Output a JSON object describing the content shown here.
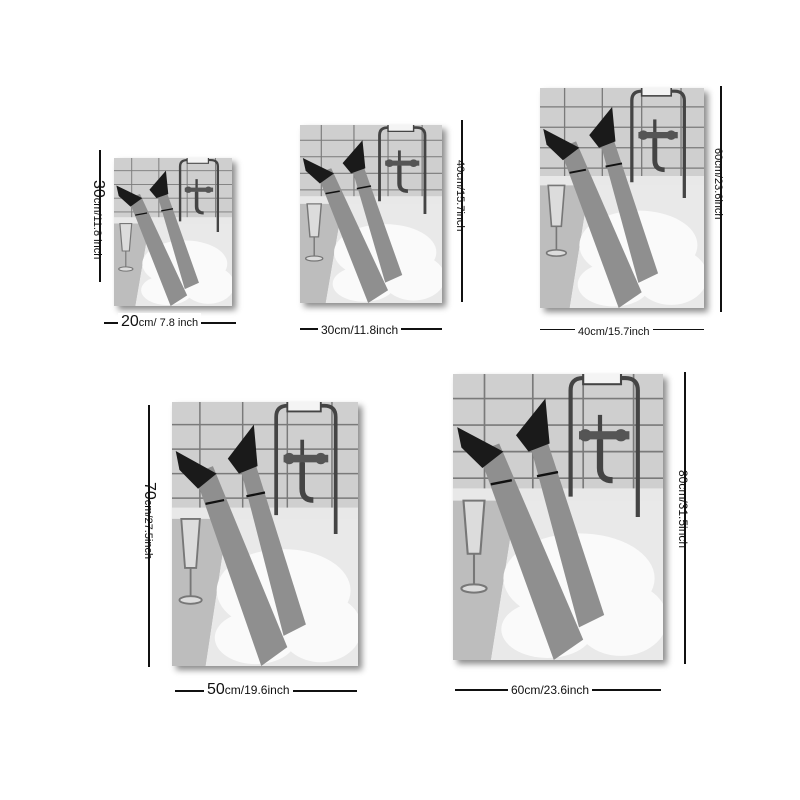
{
  "sizes": [
    {
      "width_big": "20",
      "width_rest": "cm/ 7.8 inch",
      "height_big": "30",
      "height_rest": "cm/11.8 inch"
    },
    {
      "width_big": "",
      "width_rest": "30cm/11.8inch",
      "height_big": "",
      "height_rest": "40cm/15.7inch"
    },
    {
      "width_big": "",
      "width_rest": "40cm/15.7inch",
      "height_big": "",
      "height_rest": "60cm/23.6inch"
    },
    {
      "width_big": "50",
      "width_rest": "cm/19.6inch",
      "height_big": "70",
      "height_rest": "cm/27.5inch"
    },
    {
      "width_big": "",
      "width_rest": "60cm/23.6inch",
      "height_big": "",
      "height_rest": "80cm/31.5inch"
    }
  ],
  "colors": {
    "line": "#111111",
    "background": "#ffffff"
  }
}
